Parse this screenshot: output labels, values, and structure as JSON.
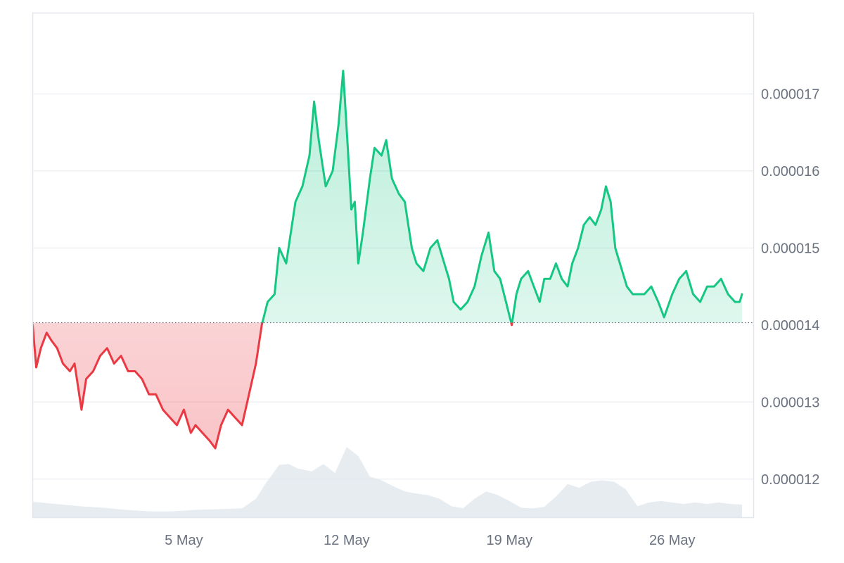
{
  "colors": {
    "up_line": "#16c784",
    "down_line": "#ea3943",
    "up_fill": "#16c784",
    "down_fill": "#ea3943",
    "volume": "#dfe5ec",
    "grid": "#eef0f3",
    "frame": "#e3e6ea",
    "baseline": "#5f6b7a",
    "label": "#6b7280"
  },
  "chart_data": {
    "type": "area",
    "title": "",
    "xlabel": "",
    "ylabel": "",
    "x_ticks": [
      "5 May",
      "12 May",
      "19 May",
      "26 May"
    ],
    "y_ticks": [
      "0.000017",
      "0.000016",
      "0.000015",
      "0.000014",
      "0.000013",
      "0.000012"
    ],
    "ylim": [
      1.15e-05,
      1.805e-05
    ],
    "x_range": [
      "2024-04-28",
      "2024-05-29"
    ],
    "baseline": 1.403e-05,
    "grid": true,
    "legend": "none",
    "series": [
      {
        "values": [
          [
            0.0,
            1.4e-05
          ],
          [
            0.15,
            1.345e-05
          ],
          [
            0.35,
            1.37e-05
          ],
          [
            0.6,
            1.39e-05
          ],
          [
            0.8,
            1.38e-05
          ],
          [
            1.05,
            1.37e-05
          ],
          [
            1.3,
            1.35e-05
          ],
          [
            1.6,
            1.34e-05
          ],
          [
            1.8,
            1.35e-05
          ],
          [
            2.1,
            1.29e-05
          ],
          [
            2.3,
            1.33e-05
          ],
          [
            2.6,
            1.34e-05
          ],
          [
            2.9,
            1.36e-05
          ],
          [
            3.2,
            1.37e-05
          ],
          [
            3.5,
            1.35e-05
          ],
          [
            3.8,
            1.36e-05
          ],
          [
            4.1,
            1.34e-05
          ],
          [
            4.4,
            1.34e-05
          ],
          [
            4.7,
            1.33e-05
          ],
          [
            5.0,
            1.31e-05
          ],
          [
            5.3,
            1.31e-05
          ],
          [
            5.6,
            1.29e-05
          ],
          [
            5.9,
            1.28e-05
          ],
          [
            6.2,
            1.27e-05
          ],
          [
            6.5,
            1.29e-05
          ],
          [
            6.8,
            1.26e-05
          ],
          [
            7.0,
            1.27e-05
          ],
          [
            7.3,
            1.26e-05
          ],
          [
            7.6,
            1.25e-05
          ],
          [
            7.85,
            1.24e-05
          ],
          [
            8.1,
            1.27e-05
          ],
          [
            8.4,
            1.29e-05
          ],
          [
            8.7,
            1.28e-05
          ],
          [
            9.0,
            1.27e-05
          ],
          [
            9.3,
            1.31e-05
          ],
          [
            9.6,
            1.35e-05
          ],
          [
            9.85,
            1.4e-05
          ],
          [
            10.1,
            1.43e-05
          ],
          [
            10.4,
            1.44e-05
          ],
          [
            10.6,
            1.5e-05
          ],
          [
            10.9,
            1.48e-05
          ],
          [
            11.1,
            1.52e-05
          ],
          [
            11.3,
            1.56e-05
          ],
          [
            11.6,
            1.58e-05
          ],
          [
            11.9,
            1.62e-05
          ],
          [
            12.1,
            1.69e-05
          ],
          [
            12.3,
            1.64e-05
          ],
          [
            12.6,
            1.58e-05
          ],
          [
            12.9,
            1.6e-05
          ],
          [
            13.15,
            1.66e-05
          ],
          [
            13.35,
            1.73e-05
          ],
          [
            13.55,
            1.63e-05
          ],
          [
            13.7,
            1.55e-05
          ],
          [
            13.85,
            1.56e-05
          ],
          [
            14.0,
            1.48e-05
          ],
          [
            14.2,
            1.52e-05
          ],
          [
            14.5,
            1.59e-05
          ],
          [
            14.7,
            1.63e-05
          ],
          [
            15.0,
            1.62e-05
          ],
          [
            15.2,
            1.64e-05
          ],
          [
            15.45,
            1.59e-05
          ],
          [
            15.75,
            1.57e-05
          ],
          [
            16.0,
            1.56e-05
          ],
          [
            16.3,
            1.5e-05
          ],
          [
            16.5,
            1.48e-05
          ],
          [
            16.8,
            1.47e-05
          ],
          [
            17.1,
            1.5e-05
          ],
          [
            17.4,
            1.51e-05
          ],
          [
            17.7,
            1.48e-05
          ],
          [
            17.9,
            1.46e-05
          ],
          [
            18.1,
            1.43e-05
          ],
          [
            18.4,
            1.42e-05
          ],
          [
            18.7,
            1.43e-05
          ],
          [
            19.0,
            1.45e-05
          ],
          [
            19.3,
            1.49e-05
          ],
          [
            19.6,
            1.52e-05
          ],
          [
            19.85,
            1.47e-05
          ],
          [
            20.1,
            1.46e-05
          ],
          [
            20.35,
            1.43e-05
          ],
          [
            20.6,
            1.4e-05
          ],
          [
            20.8,
            1.44e-05
          ],
          [
            21.0,
            1.46e-05
          ],
          [
            21.3,
            1.47e-05
          ],
          [
            21.55,
            1.45e-05
          ],
          [
            21.8,
            1.43e-05
          ],
          [
            22.0,
            1.46e-05
          ],
          [
            22.25,
            1.46e-05
          ],
          [
            22.5,
            1.48e-05
          ],
          [
            22.75,
            1.46e-05
          ],
          [
            23.0,
            1.45e-05
          ],
          [
            23.2,
            1.48e-05
          ],
          [
            23.45,
            1.5e-05
          ],
          [
            23.7,
            1.53e-05
          ],
          [
            23.95,
            1.54e-05
          ],
          [
            24.2,
            1.53e-05
          ],
          [
            24.45,
            1.55e-05
          ],
          [
            24.65,
            1.58e-05
          ],
          [
            24.85,
            1.56e-05
          ],
          [
            25.05,
            1.5e-05
          ],
          [
            25.25,
            1.48e-05
          ],
          [
            25.55,
            1.45e-05
          ],
          [
            25.8,
            1.44e-05
          ],
          [
            26.1,
            1.44e-05
          ],
          [
            26.3,
            1.44e-05
          ],
          [
            26.6,
            1.45e-05
          ],
          [
            26.9,
            1.43e-05
          ],
          [
            27.15,
            1.41e-05
          ],
          [
            27.5,
            1.44e-05
          ],
          [
            27.8,
            1.46e-05
          ],
          [
            28.1,
            1.47e-05
          ],
          [
            28.4,
            1.44e-05
          ],
          [
            28.7,
            1.43e-05
          ],
          [
            29.0,
            1.45e-05
          ],
          [
            29.3,
            1.45e-05
          ],
          [
            29.6,
            1.46e-05
          ],
          [
            29.9,
            1.44e-05
          ],
          [
            30.2,
            1.43e-05
          ],
          [
            30.4,
            1.43e-05
          ],
          [
            30.5,
            1.44e-05
          ]
        ]
      }
    ],
    "volume": [
      [
        0.0,
        0.21
      ],
      [
        1.0,
        0.18
      ],
      [
        2.0,
        0.15
      ],
      [
        3.0,
        0.13
      ],
      [
        4.0,
        0.1
      ],
      [
        5.0,
        0.08
      ],
      [
        6.0,
        0.08
      ],
      [
        7.0,
        0.1
      ],
      [
        8.0,
        0.11
      ],
      [
        9.0,
        0.12
      ],
      [
        9.6,
        0.25
      ],
      [
        10.0,
        0.45
      ],
      [
        10.6,
        0.71
      ],
      [
        11.0,
        0.72
      ],
      [
        11.4,
        0.66
      ],
      [
        12.0,
        0.62
      ],
      [
        12.5,
        0.72
      ],
      [
        13.0,
        0.6
      ],
      [
        13.5,
        0.95
      ],
      [
        14.0,
        0.83
      ],
      [
        14.5,
        0.55
      ],
      [
        15.0,
        0.5
      ],
      [
        15.5,
        0.42
      ],
      [
        16.0,
        0.35
      ],
      [
        16.5,
        0.32
      ],
      [
        17.0,
        0.3
      ],
      [
        17.5,
        0.25
      ],
      [
        18.0,
        0.15
      ],
      [
        18.5,
        0.12
      ],
      [
        19.0,
        0.25
      ],
      [
        19.5,
        0.35
      ],
      [
        20.0,
        0.3
      ],
      [
        20.5,
        0.22
      ],
      [
        21.0,
        0.13
      ],
      [
        21.5,
        0.12
      ],
      [
        22.0,
        0.14
      ],
      [
        22.5,
        0.28
      ],
      [
        23.0,
        0.45
      ],
      [
        23.5,
        0.4
      ],
      [
        24.0,
        0.48
      ],
      [
        24.5,
        0.5
      ],
      [
        25.0,
        0.48
      ],
      [
        25.5,
        0.38
      ],
      [
        26.0,
        0.15
      ],
      [
        26.5,
        0.2
      ],
      [
        27.0,
        0.22
      ],
      [
        27.5,
        0.2
      ],
      [
        28.0,
        0.18
      ],
      [
        28.5,
        0.2
      ],
      [
        29.0,
        0.18
      ],
      [
        29.5,
        0.2
      ],
      [
        30.0,
        0.18
      ],
      [
        30.5,
        0.17
      ]
    ]
  }
}
